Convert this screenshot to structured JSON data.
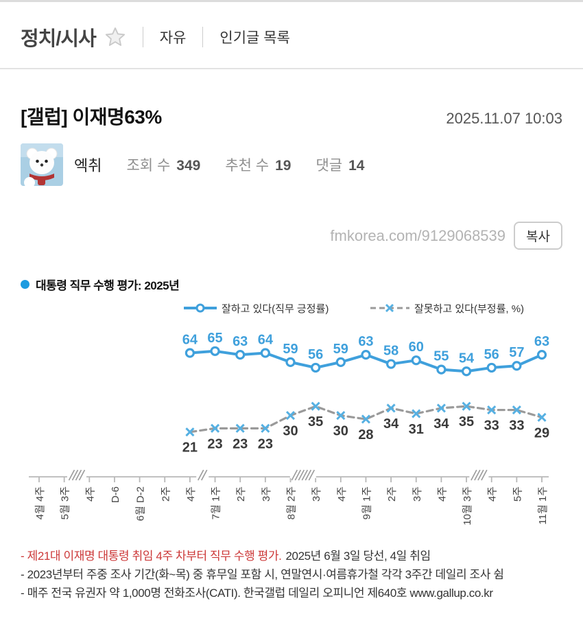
{
  "header": {
    "board_title": "정치/시사",
    "menus": [
      {
        "label": "자유"
      },
      {
        "label": "인기글 목록"
      }
    ]
  },
  "post": {
    "title": "[갤럽] 이재명63%",
    "timestamp": "2025.11.07 10:03",
    "author": "엑취",
    "stats": [
      {
        "label": "조회 수",
        "value": "349"
      },
      {
        "label": "추천 수",
        "value": "19"
      },
      {
        "label": "댓글",
        "value": "14"
      }
    ],
    "url": "fmkorea.com/9129068539",
    "copy_label": "복사"
  },
  "chart_data": {
    "type": "line",
    "title": "대통령 직무 수행 평가: 2025년",
    "title_bullet_color": "#1c9be0",
    "legend_position": "top",
    "grid": false,
    "ylim": [
      0,
      100
    ],
    "x_tick_labels": [
      "4월 4주",
      "5월 3주",
      "4주",
      "D-6",
      "6월 D-2",
      "2주",
      "4주",
      "7월 1주",
      "2주",
      "3주",
      "8월 2주",
      "3주",
      "4주",
      "9월 1주",
      "2주",
      "3주",
      "4주",
      "10월 3주",
      "4주",
      "5주",
      "11월 1주"
    ],
    "data_start_tick_index": 6,
    "series": [
      {
        "name": "잘하고 있다(직무 긍정률)",
        "marker": "circle",
        "line_style": "solid",
        "line_color": "#3fa0dc",
        "marker_color": "#3fa0dc",
        "label_color": "#3fa0dc",
        "label_position": "above",
        "values": [
          64,
          65,
          63,
          64,
          59,
          56,
          59,
          63,
          58,
          60,
          55,
          54,
          56,
          57,
          63
        ]
      },
      {
        "name": "잘못하고 있다(부정률, %)",
        "marker": "x",
        "line_style": "dashed",
        "line_color": "#9a9a9a",
        "marker_color": "#56b0e2",
        "label_color": "#3a3a3a",
        "label_position": "below",
        "values": [
          21,
          23,
          23,
          23,
          30,
          35,
          30,
          28,
          34,
          31,
          34,
          35,
          33,
          33,
          29
        ]
      }
    ],
    "axis_breaks": [
      {
        "after_tick_index": 1,
        "slashes": 4
      },
      {
        "after_tick_index": 6,
        "slashes": 2
      },
      {
        "after_tick_index": 10,
        "slashes": 6
      },
      {
        "after_tick_index": 17,
        "slashes": 4
      }
    ]
  },
  "footnotes": {
    "red_color": "#cc3838",
    "line1_red": "- 제21대 이재명 대통령 취임 4주 차부터 직무 수행 평가.",
    "line1_rest": "2025년 6월 3일 당선, 4일 취임",
    "line2": "- 2023년부터 주중 조사 기간(화~목) 중 휴무일 포함 시, 연말연시·여름휴가철 각각 3주간 데일리 조사 쉼",
    "line3": "- 매주 전국 유권자 약 1,000명 전화조사(CATI). 한국갤럽 데일리 오피니언 제640호 www.gallup.co.kr"
  }
}
